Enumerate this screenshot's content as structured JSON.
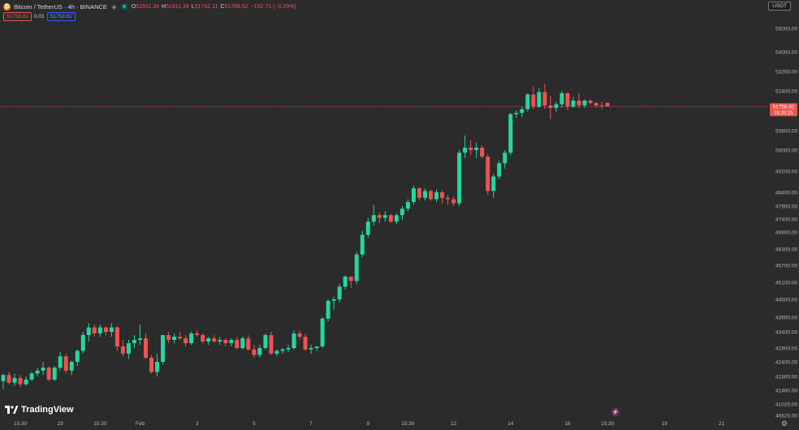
{
  "header": {
    "symbol": "Bitcoin / TetherUS · 4h · BINANCE",
    "ohlc": [
      {
        "k": "O",
        "v": "51911.34"
      },
      {
        "k": "H",
        "v": "51911.34"
      },
      {
        "k": "L",
        "v": "51742.11"
      },
      {
        "k": "C",
        "v": "51758.62"
      }
    ],
    "change": "−152.71 (−0.29%)"
  },
  "price_buttons": {
    "sell": "51758.61",
    "spread": "0.01",
    "buy": "51758.62"
  },
  "currency": "USDT",
  "logo_text": "TradingView",
  "colors": {
    "up": "#26d6a0",
    "down": "#ef5350",
    "background": "#2b2b2b",
    "axis_text": "#b2b5be"
  },
  "chart_data": {
    "type": "candlestick",
    "title": "Bitcoin / TetherUS · 4h · BINANCE",
    "y_ticks": [
      40620,
      41020,
      41460,
      41900,
      42400,
      42900,
      43400,
      43900,
      44500,
      45100,
      45700,
      46300,
      46900,
      47400,
      47900,
      48400,
      49200,
      50000,
      50800,
      51600,
      52400,
      53200,
      54000,
      55000
    ],
    "y_tick_labels": [
      "40620.00",
      "41020.00",
      "41460.00",
      "41900.00",
      "42400.00",
      "42900.00",
      "43400.00",
      "43900.00",
      "44500.00",
      "45100.00",
      "45700.00",
      "46300.00",
      "46900.00",
      "47400.00",
      "47900.00",
      "48400.00",
      "49200.00",
      "50000.00",
      "50800.00",
      "51600.00",
      "52400.00",
      "53200.00",
      "54000.00",
      "55000.00"
    ],
    "x_ticks": [
      {
        "label": "15:30",
        "i": 3
      },
      {
        "label": "29",
        "i": 10
      },
      {
        "label": "15:30",
        "i": 17
      },
      {
        "label": "Feb",
        "i": 24
      },
      {
        "label": "3",
        "i": 34
      },
      {
        "label": "5",
        "i": 44
      },
      {
        "label": "7",
        "i": 54
      },
      {
        "label": "9",
        "i": 64
      },
      {
        "label": "15:30",
        "i": 71
      },
      {
        "label": "12",
        "i": 79
      },
      {
        "label": "14",
        "i": 89
      },
      {
        "label": "16",
        "i": 99
      },
      {
        "label": "15:30",
        "i": 106
      },
      {
        "label": "19",
        "i": 116
      },
      {
        "label": "21",
        "i": 126
      }
    ],
    "current_price": "51758.62",
    "countdown": "03:20:25",
    "current_value": 51758.62,
    "candles": [
      [
        41750,
        42000,
        41500,
        41950
      ],
      [
        41950,
        42050,
        41650,
        41700
      ],
      [
        41700,
        42000,
        41600,
        41850
      ],
      [
        41850,
        41950,
        41550,
        41650
      ],
      [
        41650,
        41900,
        41600,
        41800
      ],
      [
        41800,
        42050,
        41750,
        42000
      ],
      [
        42000,
        42200,
        41900,
        42100
      ],
      [
        42100,
        42400,
        41950,
        42200
      ],
      [
        42200,
        42250,
        41750,
        41800
      ],
      [
        41800,
        42250,
        41750,
        42200
      ],
      [
        42200,
        42750,
        42100,
        42600
      ],
      [
        42600,
        42700,
        42000,
        42100
      ],
      [
        42100,
        42450,
        41950,
        42400
      ],
      [
        42400,
        42850,
        42250,
        42800
      ],
      [
        42800,
        43400,
        42700,
        43300
      ],
      [
        43300,
        43700,
        43100,
        43550
      ],
      [
        43550,
        43650,
        43250,
        43350
      ],
      [
        43350,
        43650,
        43250,
        43550
      ],
      [
        43550,
        43600,
        43300,
        43400
      ],
      [
        43400,
        43700,
        43250,
        43550
      ],
      [
        43550,
        43600,
        42800,
        42950
      ],
      [
        42950,
        43150,
        42600,
        42700
      ],
      [
        42700,
        43150,
        42500,
        43050
      ],
      [
        43050,
        43300,
        42900,
        43150
      ],
      [
        43150,
        43650,
        43000,
        43200
      ],
      [
        43200,
        43350,
        42500,
        42550
      ],
      [
        42550,
        42650,
        42000,
        42050
      ],
      [
        42050,
        42700,
        41900,
        42400
      ],
      [
        42400,
        43300,
        42300,
        43300
      ],
      [
        43300,
        43400,
        43050,
        43150
      ],
      [
        43150,
        43350,
        43050,
        43250
      ],
      [
        43250,
        43400,
        43150,
        43200
      ],
      [
        43200,
        43300,
        42950,
        43050
      ],
      [
        43050,
        43400,
        43000,
        43350
      ],
      [
        43350,
        43450,
        43250,
        43300
      ],
      [
        43300,
        43350,
        43050,
        43100
      ],
      [
        43100,
        43250,
        43000,
        43200
      ],
      [
        43200,
        43300,
        43050,
        43100
      ],
      [
        43100,
        43250,
        43000,
        43150
      ],
      [
        43150,
        43200,
        42950,
        43050
      ],
      [
        43050,
        43200,
        42950,
        43150
      ],
      [
        43150,
        43250,
        42850,
        42900
      ],
      [
        42900,
        43250,
        42850,
        43200
      ],
      [
        43200,
        43300,
        42800,
        42850
      ],
      [
        42850,
        43000,
        42550,
        42650
      ],
      [
        42650,
        43000,
        42550,
        42900
      ],
      [
        42900,
        43350,
        42850,
        43300
      ],
      [
        43300,
        43400,
        42650,
        42700
      ],
      [
        42700,
        42850,
        42600,
        42800
      ],
      [
        42800,
        42900,
        42700,
        42850
      ],
      [
        42850,
        43000,
        42750,
        42900
      ],
      [
        42900,
        43450,
        42850,
        43350
      ],
      [
        43350,
        43450,
        43150,
        43250
      ],
      [
        43250,
        43350,
        42800,
        42850
      ],
      [
        42850,
        43000,
        42700,
        42900
      ],
      [
        42900,
        42950,
        42800,
        42950
      ],
      [
        42950,
        43900,
        42900,
        43850
      ],
      [
        43850,
        44500,
        43750,
        44450
      ],
      [
        44450,
        44600,
        44150,
        44500
      ],
      [
        44500,
        45050,
        44400,
        44950
      ],
      [
        44950,
        45350,
        44850,
        45300
      ],
      [
        45300,
        45300,
        44900,
        45150
      ],
      [
        45150,
        46200,
        45050,
        46100
      ],
      [
        46100,
        46950,
        46000,
        46800
      ],
      [
        46800,
        47450,
        46700,
        47300
      ],
      [
        47300,
        47950,
        47150,
        47550
      ],
      [
        47550,
        47650,
        47250,
        47450
      ],
      [
        47450,
        47700,
        47300,
        47550
      ],
      [
        47550,
        47600,
        47250,
        47300
      ],
      [
        47300,
        47600,
        47200,
        47550
      ],
      [
        47550,
        47900,
        47350,
        47800
      ],
      [
        47800,
        48150,
        47700,
        48050
      ],
      [
        48050,
        48650,
        47950,
        48550
      ],
      [
        48550,
        48600,
        48100,
        48200
      ],
      [
        48200,
        48550,
        48100,
        48450
      ],
      [
        48450,
        48500,
        48100,
        48150
      ],
      [
        48150,
        48500,
        48050,
        48400
      ],
      [
        48400,
        48500,
        48000,
        48200
      ],
      [
        48200,
        48300,
        47950,
        48150
      ],
      [
        48150,
        48250,
        47900,
        48000
      ],
      [
        48000,
        50000,
        47900,
        49900
      ],
      [
        49900,
        50600,
        49700,
        50100
      ],
      [
        50100,
        50400,
        49800,
        50000
      ],
      [
        50000,
        50300,
        49700,
        50100
      ],
      [
        50100,
        50200,
        49700,
        49750
      ],
      [
        49750,
        49850,
        48300,
        48450
      ],
      [
        48450,
        49100,
        48200,
        49000
      ],
      [
        49000,
        49600,
        48900,
        49500
      ],
      [
        49500,
        50000,
        49300,
        49900
      ],
      [
        49900,
        51500,
        49800,
        51450
      ],
      [
        51450,
        51600,
        51300,
        51500
      ],
      [
        51500,
        51750,
        51350,
        51650
      ],
      [
        51650,
        52300,
        51550,
        52250
      ],
      [
        52250,
        52600,
        51650,
        51750
      ],
      [
        51750,
        52500,
        51700,
        52350
      ],
      [
        52350,
        52700,
        51650,
        51800
      ],
      [
        51800,
        52200,
        51250,
        51700
      ],
      [
        51700,
        51950,
        51550,
        51850
      ],
      [
        51850,
        52400,
        51700,
        52300
      ],
      [
        52300,
        52350,
        51600,
        51750
      ],
      [
        51750,
        52150,
        51700,
        52000
      ],
      [
        52000,
        52300,
        51700,
        51800
      ],
      [
        51800,
        52050,
        51700,
        52000
      ],
      [
        52000,
        52050,
        51850,
        51900
      ],
      [
        51900,
        51950,
        51700,
        51800
      ],
      [
        51800,
        51950,
        51650,
        51780
      ],
      [
        51911,
        51911,
        51742,
        51759
      ]
    ]
  }
}
